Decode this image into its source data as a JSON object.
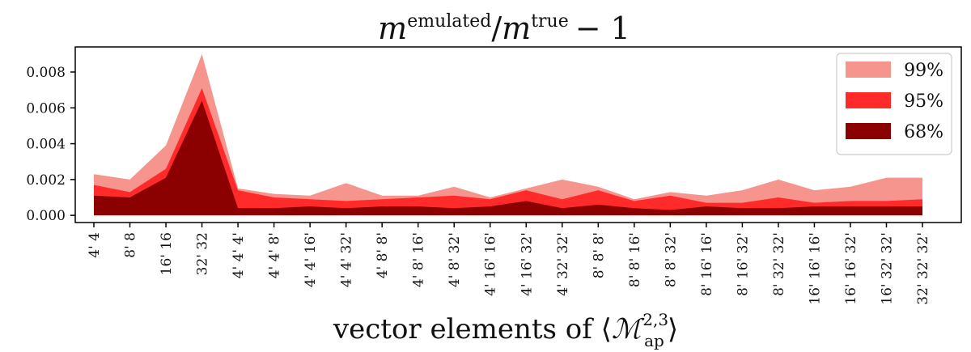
{
  "chart_data": {
    "type": "area",
    "title": {
      "base": "m",
      "num_sup": "emulated",
      "slash": "/",
      "den_sup": "true",
      "suffix": "− 1"
    },
    "xlabel": {
      "prefix": "vector elements of ⟨",
      "symbol": "ℳ",
      "sub": "ap",
      "sup": "2,3",
      "suffix": "⟩"
    },
    "categories": [
      "4' 4",
      "8' 8",
      "16' 16",
      "32' 32",
      "4' 4' 4'",
      "4' 4' 8'",
      "4' 4' 16'",
      "4' 4' 32'",
      "4' 8' 8'",
      "4' 8' 16'",
      "4' 8' 32'",
      "4' 16' 16'",
      "4' 16' 32'",
      "4' 32' 32'",
      "8' 8' 8'",
      "8' 8' 16'",
      "8' 8' 32'",
      "8' 16' 16'",
      "8' 16' 32'",
      "8' 32' 32'",
      "16' 16' 16'",
      "16' 16' 32'",
      "16' 32' 32'",
      "32' 32' 32'"
    ],
    "series": [
      {
        "name": "99%",
        "color": "#f5958d",
        "values": [
          0.0023,
          0.002,
          0.0039,
          0.009,
          0.0015,
          0.0012,
          0.0011,
          0.0018,
          0.0011,
          0.0011,
          0.0016,
          0.001,
          0.0015,
          0.002,
          0.0016,
          0.0009,
          0.0013,
          0.0011,
          0.0014,
          0.002,
          0.0014,
          0.0016,
          0.0021,
          0.0021
        ]
      },
      {
        "name": "95%",
        "color": "#ff2b2b",
        "values": [
          0.0017,
          0.0013,
          0.0026,
          0.0071,
          0.0014,
          0.001,
          0.0009,
          0.0008,
          0.0009,
          0.001,
          0.0011,
          0.0009,
          0.0014,
          0.0009,
          0.0014,
          0.0008,
          0.0011,
          0.0007,
          0.0007,
          0.001,
          0.0007,
          0.0008,
          0.0008,
          0.0009
        ]
      },
      {
        "name": "68%",
        "color": "#8b0000",
        "values": [
          0.0011,
          0.001,
          0.0021,
          0.0064,
          0.0004,
          0.0004,
          0.0005,
          0.0004,
          0.0005,
          0.0005,
          0.0004,
          0.0005,
          0.0008,
          0.0004,
          0.0006,
          0.0004,
          0.0003,
          0.0005,
          0.0004,
          0.0004,
          0.0005,
          0.0005,
          0.0005,
          0.0005
        ]
      }
    ],
    "ylim": [
      -0.0004,
      0.0094
    ],
    "yticks": [
      0.0,
      0.002,
      0.004,
      0.006,
      0.008
    ],
    "ytick_labels": [
      "0.000",
      "0.002",
      "0.004",
      "0.006",
      "0.008"
    ],
    "legend_position": "top-right",
    "grid": false
  }
}
